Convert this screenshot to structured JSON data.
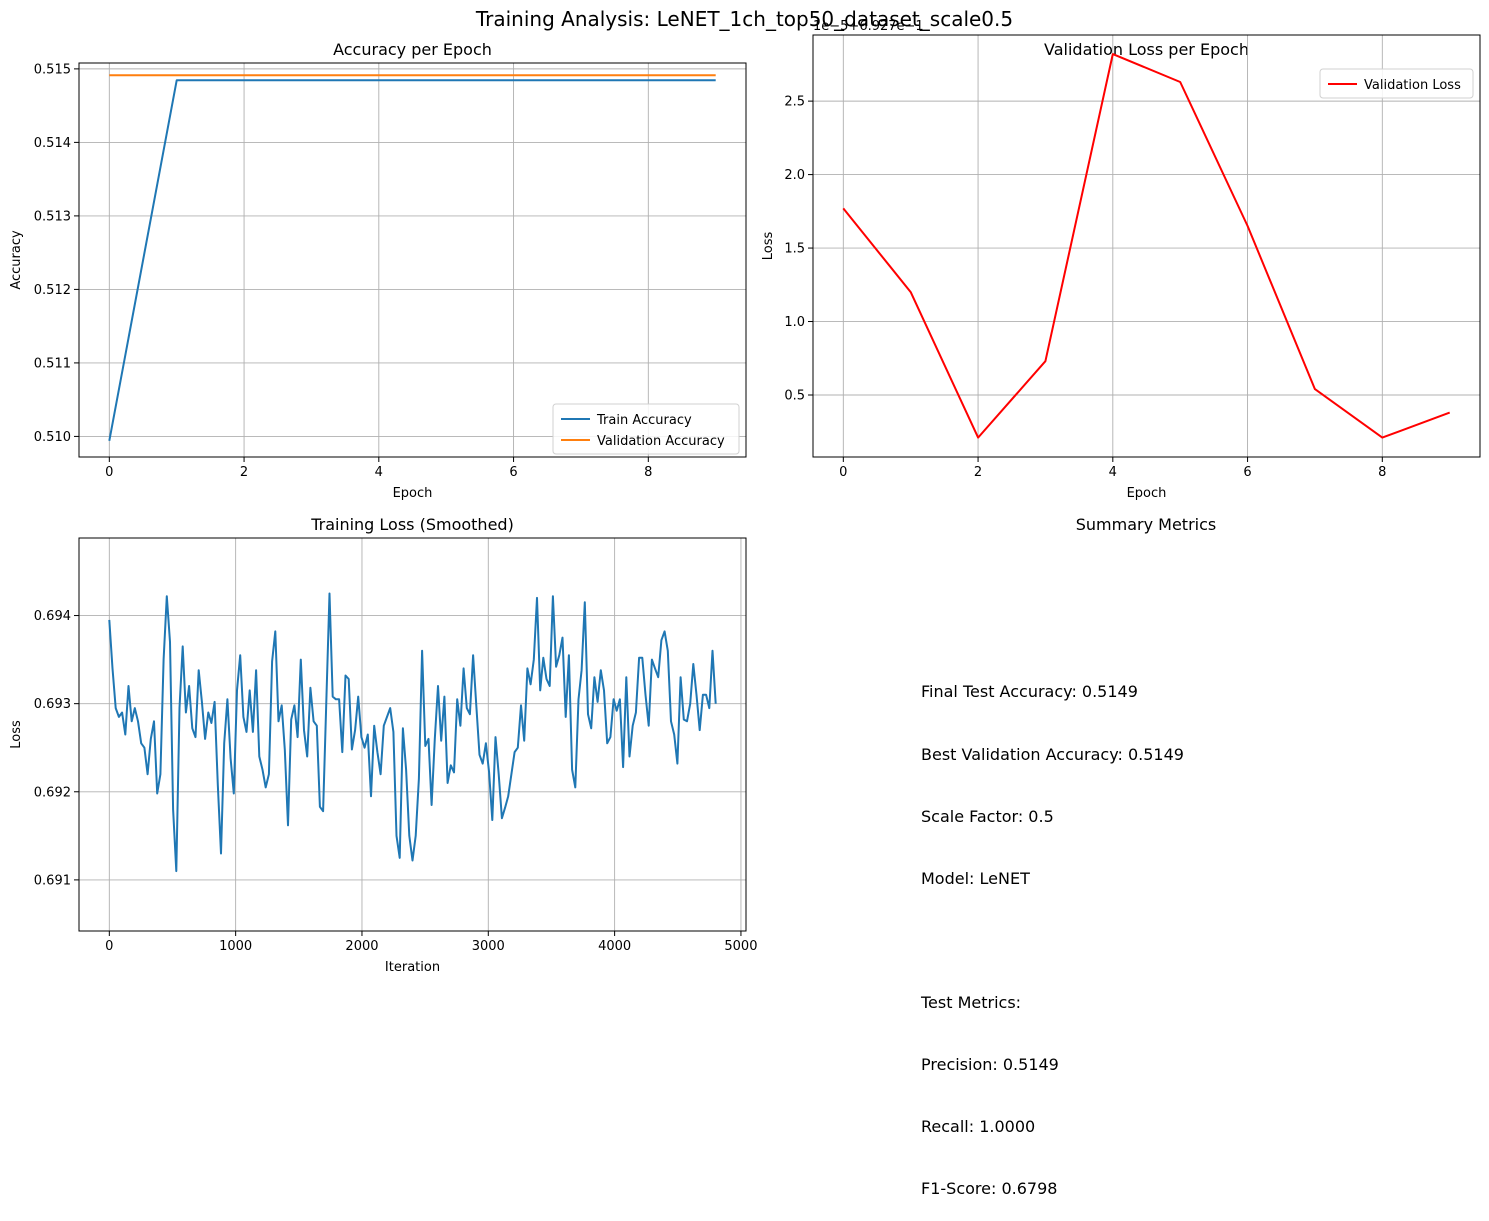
{
  "figure": {
    "title": "Training Analysis: LeNET_1ch_top50_dataset_scale0.5",
    "colors": {
      "train": "#1f77b4",
      "validation": "#ff7f0e",
      "val_loss": "#ff0000",
      "grid": "#b0b0b0"
    }
  },
  "chart_data": [
    {
      "type": "line",
      "title": "Accuracy per Epoch",
      "xlabel": "Epoch",
      "ylabel": "Accuracy",
      "x": [
        0,
        1,
        2,
        3,
        4,
        5,
        6,
        7,
        8,
        9
      ],
      "series": [
        {
          "name": "Train Accuracy",
          "values": [
            0.50994,
            0.514845,
            0.514845,
            0.514845,
            0.514845,
            0.514845,
            0.514845,
            0.514845,
            0.514845,
            0.514845
          ]
        },
        {
          "name": "Validation Accuracy",
          "values": [
            0.514914,
            0.514914,
            0.514914,
            0.514914,
            0.514914,
            0.514914,
            0.514914,
            0.514914,
            0.514914,
            0.514914
          ]
        }
      ],
      "xlim": [
        -0.45,
        9.45
      ],
      "ylim": [
        0.50972,
        0.51508
      ],
      "xticks": [
        "0",
        "2",
        "4",
        "6",
        "8"
      ],
      "yticks": [
        "0.510",
        "0.511",
        "0.512",
        "0.513",
        "0.514",
        "0.515"
      ],
      "grid": true,
      "legend": "lower right"
    },
    {
      "type": "line",
      "title": "Validation Loss per Epoch",
      "xlabel": "Epoch",
      "ylabel": "Loss",
      "offset_label": "1e−5+6.927e−1",
      "x": [
        0,
        1,
        2,
        3,
        4,
        5,
        6,
        7,
        8,
        9
      ],
      "series": [
        {
          "name": "Validation Loss",
          "values": [
            1.77,
            1.2,
            0.21,
            0.73,
            2.82,
            2.63,
            1.65,
            0.54,
            0.21,
            0.38
          ]
        }
      ],
      "xlim": [
        -0.45,
        9.45
      ],
      "ylim": [
        0.078,
        2.95
      ],
      "xticks": [
        "0",
        "2",
        "4",
        "6",
        "8"
      ],
      "yticks": [
        "0.5",
        "1.0",
        "1.5",
        "2.0",
        "2.5"
      ],
      "grid": true,
      "legend": "top right"
    },
    {
      "type": "line",
      "title": "Training Loss (Smoothed)",
      "xlabel": "Iteration",
      "ylabel": "Loss",
      "x_range": [
        0,
        4800
      ],
      "series": [
        {
          "name": "",
          "values": [
            0.69395,
            0.6934,
            0.69295,
            0.69285,
            0.6929,
            0.69265,
            0.6932,
            0.6928,
            0.69295,
            0.6928,
            0.69255,
            0.6925,
            0.6922,
            0.6926,
            0.6928,
            0.69198,
            0.6922,
            0.6935,
            0.69422,
            0.6937,
            0.6918,
            0.6911,
            0.69295,
            0.69365,
            0.6929,
            0.6932,
            0.69272,
            0.69262,
            0.69338,
            0.69302,
            0.6926,
            0.6929,
            0.69278,
            0.69302,
            0.69208,
            0.6913,
            0.69255,
            0.69305,
            0.69238,
            0.69198,
            0.69315,
            0.69355,
            0.69285,
            0.69268,
            0.69315,
            0.69268,
            0.69338,
            0.6924,
            0.69225,
            0.69205,
            0.6922,
            0.69348,
            0.69382,
            0.6928,
            0.69298,
            0.69248,
            0.69162,
            0.69282,
            0.69298,
            0.69262,
            0.6935,
            0.6927,
            0.6924,
            0.69318,
            0.6928,
            0.69275,
            0.69183,
            0.69178,
            0.69302,
            0.69425,
            0.69308,
            0.69305,
            0.69305,
            0.69245,
            0.69332,
            0.69328,
            0.69248,
            0.6927,
            0.69308,
            0.69262,
            0.6925,
            0.69265,
            0.69195,
            0.69275,
            0.69245,
            0.6922,
            0.69275,
            0.69285,
            0.69295,
            0.69268,
            0.6915,
            0.69125,
            0.69272,
            0.69225,
            0.6915,
            0.69122,
            0.6915,
            0.69215,
            0.6936,
            0.69252,
            0.6926,
            0.69185,
            0.6926,
            0.6932,
            0.69258,
            0.69308,
            0.6921,
            0.6923,
            0.69222,
            0.69305,
            0.69275,
            0.6934,
            0.69295,
            0.69288,
            0.69355,
            0.69298,
            0.69242,
            0.69232,
            0.69255,
            0.69222,
            0.69168,
            0.69262,
            0.6922,
            0.6917,
            0.69182,
            0.69195,
            0.6922,
            0.69245,
            0.6925,
            0.69298,
            0.69258,
            0.6934,
            0.69322,
            0.6935,
            0.6942,
            0.69315,
            0.69352,
            0.69328,
            0.6932,
            0.69422,
            0.69342,
            0.69355,
            0.69375,
            0.69285,
            0.69355,
            0.69225,
            0.69205,
            0.69305,
            0.69338,
            0.69415,
            0.69288,
            0.69272,
            0.6933,
            0.69302,
            0.69338,
            0.69315,
            0.69255,
            0.69262,
            0.69305,
            0.69292,
            0.69305,
            0.69228,
            0.6933,
            0.6924,
            0.69275,
            0.6929,
            0.69352,
            0.69352,
            0.6931,
            0.69275,
            0.6935,
            0.6934,
            0.6933,
            0.69372,
            0.69382,
            0.6936,
            0.6928,
            0.69265,
            0.69232,
            0.6933,
            0.69282,
            0.6928,
            0.693,
            0.69345,
            0.6931,
            0.6927,
            0.6931,
            0.6931,
            0.69295,
            0.6936,
            0.693
          ]
        }
      ],
      "xlim": [
        -240,
        5040
      ],
      "ylim": [
        0.69042,
        0.69488
      ],
      "xticks": [
        "0",
        "1000",
        "2000",
        "3000",
        "4000",
        "5000"
      ],
      "yticks": [
        "0.691",
        "0.692",
        "0.693",
        "0.694"
      ],
      "grid": true
    }
  ],
  "summary": {
    "title": "Summary Metrics",
    "lines": [
      "Final Test Accuracy: 0.5149",
      "Best Validation Accuracy: 0.5149",
      "Scale Factor: 0.5",
      "Model: LeNET",
      "",
      "Test Metrics:",
      "Precision: 0.5149",
      "Recall: 1.0000",
      "F1-Score: 0.6798"
    ]
  }
}
